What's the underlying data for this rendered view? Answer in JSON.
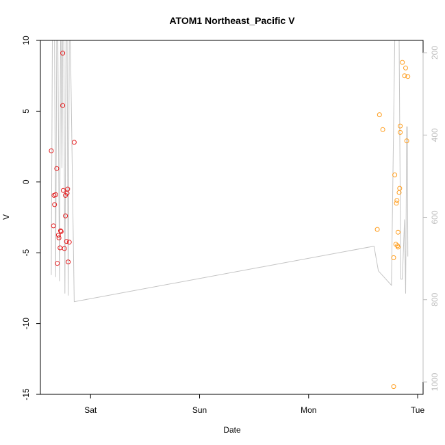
{
  "chart_data": {
    "type": "scatter",
    "title": "ATOM1 Northeast_Pacific V",
    "xlabel": "Date",
    "ylabel": "V",
    "x_ticks": [
      "Sat",
      "Sun",
      "Mon",
      "Tue"
    ],
    "y_ticks": [
      "10",
      "5",
      "0",
      "-5",
      "-10",
      "-15"
    ],
    "y2_ticks": [
      "200",
      "400",
      "600",
      "800",
      "1000"
    ],
    "xlim_days": [
      -0.46,
      3.05
    ],
    "ylim": [
      -15,
      10
    ],
    "y2lim": [
      1030,
      170
    ],
    "colors": {
      "series1": "#e31a1c",
      "series2": "#ff9d1c",
      "depth_line": "#c4c4c4",
      "axis": "#000000",
      "y2_axis": "#bdbdbd"
    },
    "series": [
      {
        "points": [
          [
            -0.36,
            2.2
          ],
          [
            -0.34,
            -3.1
          ],
          [
            -0.335,
            -0.95
          ],
          [
            -0.33,
            -1.6
          ],
          [
            -0.32,
            -0.9
          ],
          [
            -0.31,
            0.95
          ],
          [
            -0.305,
            -5.75
          ],
          [
            -0.295,
            -3.75
          ],
          [
            -0.29,
            -3.95
          ],
          [
            -0.28,
            -4.65
          ],
          [
            -0.275,
            -3.45
          ],
          [
            -0.27,
            -3.5
          ],
          [
            -0.255,
            9.1
          ],
          [
            -0.255,
            5.4
          ],
          [
            -0.25,
            -0.6
          ],
          [
            -0.24,
            -4.7
          ],
          [
            -0.23,
            -2.4
          ],
          [
            -0.23,
            -0.95
          ],
          [
            -0.22,
            -4.2
          ],
          [
            -0.215,
            -0.8
          ],
          [
            -0.21,
            -0.5
          ],
          [
            -0.205,
            -5.65
          ],
          [
            -0.195,
            -4.25
          ],
          [
            -0.15,
            2.8
          ]
        ]
      },
      {
        "points": [
          [
            2.63,
            -3.35
          ],
          [
            2.65,
            4.75
          ],
          [
            2.68,
            3.7
          ],
          [
            2.78,
            -5.35
          ],
          [
            2.78,
            -14.45
          ],
          [
            2.79,
            0.5
          ],
          [
            2.8,
            -4.4
          ],
          [
            2.805,
            -1.5
          ],
          [
            2.81,
            -1.3
          ],
          [
            2.815,
            -4.5
          ],
          [
            2.82,
            -4.6
          ],
          [
            2.82,
            -3.55
          ],
          [
            2.83,
            -0.75
          ],
          [
            2.835,
            -0.45
          ],
          [
            2.84,
            3.95
          ],
          [
            2.84,
            3.5
          ],
          [
            2.86,
            8.45
          ],
          [
            2.88,
            7.5
          ],
          [
            2.89,
            8.05
          ],
          [
            2.9,
            2.9
          ],
          [
            2.91,
            7.45
          ]
        ]
      }
    ],
    "depth_line": [
      [
        -0.36,
        740
      ],
      [
        -0.35,
        170
      ],
      [
        -0.33,
        170
      ],
      [
        -0.32,
        745
      ],
      [
        -0.31,
        170
      ],
      [
        -0.3,
        170
      ],
      [
        -0.285,
        755
      ],
      [
        -0.275,
        170
      ],
      [
        -0.27,
        170
      ],
      [
        -0.262,
        480
      ],
      [
        -0.255,
        170
      ],
      [
        -0.245,
        170
      ],
      [
        -0.235,
        785
      ],
      [
        -0.225,
        170
      ],
      [
        -0.215,
        170
      ],
      [
        -0.205,
        790
      ],
      [
        -0.195,
        170
      ],
      [
        -0.185,
        170
      ],
      [
        -0.15,
        805
      ],
      [
        2.6,
        670
      ],
      [
        2.64,
        730
      ],
      [
        2.76,
        765
      ],
      [
        2.79,
        170
      ],
      [
        2.8,
        170
      ],
      [
        2.815,
        170
      ],
      [
        2.83,
        170
      ],
      [
        2.845,
        750
      ],
      [
        2.86,
        750
      ],
      [
        2.88,
        605
      ],
      [
        2.89,
        785
      ],
      [
        2.9,
        380
      ],
      [
        2.905,
        380
      ],
      [
        2.91,
        695
      ]
    ]
  }
}
